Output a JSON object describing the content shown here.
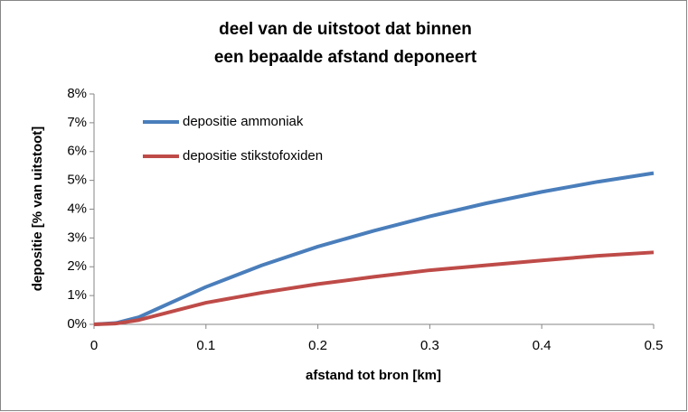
{
  "chart_data": {
    "type": "line",
    "title": [
      "deel van de uitstoot dat binnen",
      "een bepaalde afstand deponeert"
    ],
    "x_label": "afstand tot bron [km]",
    "y_label": "depositie [% van uitstoot]",
    "x": [
      0,
      0.02,
      0.04,
      0.06,
      0.08,
      0.1,
      0.15,
      0.2,
      0.25,
      0.3,
      0.35,
      0.4,
      0.45,
      0.5
    ],
    "series": [
      {
        "name": "depositie ammoniak",
        "color": "#4a7ebb",
        "values": [
          0,
          0.05,
          0.25,
          0.6,
          0.95,
          1.3,
          2.05,
          2.7,
          3.25,
          3.75,
          4.2,
          4.6,
          4.95,
          5.25
        ]
      },
      {
        "name": "depositie stikstofoxiden",
        "color": "#be4b48",
        "values": [
          0,
          0.03,
          0.15,
          0.35,
          0.55,
          0.75,
          1.1,
          1.4,
          1.65,
          1.88,
          2.05,
          2.22,
          2.38,
          2.5
        ]
      }
    ],
    "xlim": [
      0,
      0.5
    ],
    "xticks": [
      0,
      0.1,
      0.2,
      0.3,
      0.4,
      0.5
    ],
    "ylim": [
      0,
      8
    ],
    "yticks": [
      {
        "value": 0,
        "label": "0%"
      },
      {
        "value": 1,
        "label": "1%"
      },
      {
        "value": 2,
        "label": "2%"
      },
      {
        "value": 3,
        "label": "3%"
      },
      {
        "value": 4,
        "label": "4%"
      },
      {
        "value": 5,
        "label": "5%"
      },
      {
        "value": 6,
        "label": "6%"
      },
      {
        "value": 7,
        "label": "7%"
      },
      {
        "value": 8,
        "label": "8%"
      }
    ],
    "legend": "upper-left"
  }
}
